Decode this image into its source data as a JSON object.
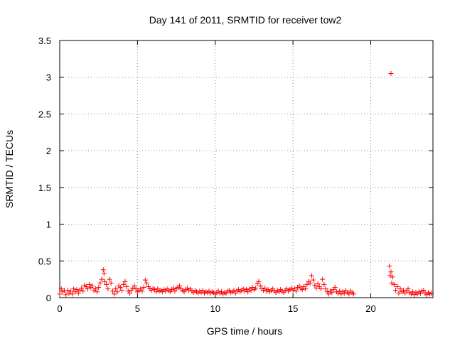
{
  "chart_data": {
    "type": "scatter",
    "title": "Day 141 of 2011, SRMTID for receiver tow2",
    "xlabel": "GPS time / hours",
    "ylabel": "SRMTID / TECUs",
    "xlim": [
      0,
      24
    ],
    "ylim": [
      0,
      3.5
    ],
    "grid": true,
    "marker": "+",
    "colors": {
      "series": "#ff0000",
      "grid": "#888888",
      "axis": "#000000"
    },
    "x_ticks": [
      0,
      5,
      10,
      15,
      20
    ],
    "x_tick_labels": [
      "0",
      "5",
      "10",
      "15",
      "20"
    ],
    "y_ticks": [
      0,
      0.5,
      1,
      1.5,
      2,
      2.5,
      3,
      3.5
    ],
    "y_tick_labels": [
      "0",
      "0.5",
      "1",
      "1.5",
      "2",
      "2.5",
      "3",
      "3.5"
    ],
    "series": [
      {
        "points": [
          [
            0.0,
            0.05
          ],
          [
            0.1,
            0.12
          ],
          [
            0.2,
            0.08
          ],
          [
            0.3,
            0.1
          ],
          [
            0.4,
            0.04
          ],
          [
            0.5,
            0.1
          ],
          [
            0.6,
            0.06
          ],
          [
            0.7,
            0.09
          ],
          [
            0.8,
            0.05
          ],
          [
            0.9,
            0.12
          ],
          [
            1.0,
            0.08
          ],
          [
            1.1,
            0.11
          ],
          [
            1.2,
            0.06
          ],
          [
            1.3,
            0.1
          ],
          [
            1.4,
            0.13
          ],
          [
            1.5,
            0.09
          ],
          [
            1.6,
            0.17
          ],
          [
            1.7,
            0.15
          ],
          [
            1.8,
            0.12
          ],
          [
            1.9,
            0.18
          ],
          [
            2.0,
            0.14
          ],
          [
            2.1,
            0.16
          ],
          [
            2.2,
            0.1
          ],
          [
            2.3,
            0.12
          ],
          [
            2.4,
            0.08
          ],
          [
            2.5,
            0.14
          ],
          [
            2.6,
            0.2
          ],
          [
            2.7,
            0.25
          ],
          [
            2.8,
            0.38
          ],
          [
            2.85,
            0.33
          ],
          [
            2.9,
            0.22
          ],
          [
            3.0,
            0.18
          ],
          [
            3.1,
            0.12
          ],
          [
            3.2,
            0.25
          ],
          [
            3.3,
            0.2
          ],
          [
            3.4,
            0.09
          ],
          [
            3.5,
            0.05
          ],
          [
            3.6,
            0.12
          ],
          [
            3.7,
            0.08
          ],
          [
            3.8,
            0.16
          ],
          [
            3.9,
            0.14
          ],
          [
            4.0,
            0.1
          ],
          [
            4.1,
            0.18
          ],
          [
            4.2,
            0.22
          ],
          [
            4.3,
            0.15
          ],
          [
            4.4,
            0.09
          ],
          [
            4.5,
            0.06
          ],
          [
            4.6,
            0.1
          ],
          [
            4.7,
            0.13
          ],
          [
            4.8,
            0.16
          ],
          [
            4.9,
            0.12
          ],
          [
            5.0,
            0.08
          ],
          [
            5.1,
            0.1
          ],
          [
            5.2,
            0.12
          ],
          [
            5.3,
            0.09
          ],
          [
            5.4,
            0.14
          ],
          [
            5.5,
            0.24
          ],
          [
            5.6,
            0.2
          ],
          [
            5.7,
            0.15
          ],
          [
            5.8,
            0.12
          ],
          [
            5.9,
            0.1
          ],
          [
            6.0,
            0.13
          ],
          [
            6.1,
            0.11
          ],
          [
            6.2,
            0.08
          ],
          [
            6.3,
            0.12
          ],
          [
            6.4,
            0.09
          ],
          [
            6.5,
            0.1
          ],
          [
            6.6,
            0.08
          ],
          [
            6.7,
            0.11
          ],
          [
            6.8,
            0.09
          ],
          [
            6.9,
            0.12
          ],
          [
            7.0,
            0.1
          ],
          [
            7.1,
            0.08
          ],
          [
            7.2,
            0.11
          ],
          [
            7.3,
            0.13
          ],
          [
            7.4,
            0.09
          ],
          [
            7.5,
            0.12
          ],
          [
            7.6,
            0.14
          ],
          [
            7.7,
            0.16
          ],
          [
            7.8,
            0.12
          ],
          [
            7.9,
            0.1
          ],
          [
            8.0,
            0.08
          ],
          [
            8.1,
            0.11
          ],
          [
            8.2,
            0.13
          ],
          [
            8.3,
            0.1
          ],
          [
            8.4,
            0.12
          ],
          [
            8.5,
            0.09
          ],
          [
            8.6,
            0.07
          ],
          [
            8.7,
            0.1
          ],
          [
            8.8,
            0.08
          ],
          [
            8.9,
            0.06
          ],
          [
            9.0,
            0.09
          ],
          [
            9.1,
            0.07
          ],
          [
            9.2,
            0.1
          ],
          [
            9.3,
            0.06
          ],
          [
            9.4,
            0.08
          ],
          [
            9.5,
            0.07
          ],
          [
            9.6,
            0.09
          ],
          [
            9.7,
            0.06
          ],
          [
            9.8,
            0.08
          ],
          [
            9.9,
            0.07
          ],
          [
            10.0,
            0.05
          ],
          [
            10.1,
            0.07
          ],
          [
            10.2,
            0.09
          ],
          [
            10.3,
            0.06
          ],
          [
            10.4,
            0.08
          ],
          [
            10.5,
            0.05
          ],
          [
            10.6,
            0.07
          ],
          [
            10.7,
            0.06
          ],
          [
            10.8,
            0.09
          ],
          [
            10.9,
            0.1
          ],
          [
            11.0,
            0.07
          ],
          [
            11.1,
            0.08
          ],
          [
            11.2,
            0.1
          ],
          [
            11.3,
            0.06
          ],
          [
            11.4,
            0.09
          ],
          [
            11.5,
            0.11
          ],
          [
            11.6,
            0.08
          ],
          [
            11.7,
            0.1
          ],
          [
            11.8,
            0.12
          ],
          [
            11.9,
            0.09
          ],
          [
            12.0,
            0.11
          ],
          [
            12.1,
            0.08
          ],
          [
            12.2,
            0.12
          ],
          [
            12.3,
            0.1
          ],
          [
            12.4,
            0.14
          ],
          [
            12.5,
            0.11
          ],
          [
            12.6,
            0.13
          ],
          [
            12.7,
            0.19
          ],
          [
            12.8,
            0.22
          ],
          [
            12.9,
            0.16
          ],
          [
            13.0,
            0.12
          ],
          [
            13.1,
            0.1
          ],
          [
            13.2,
            0.13
          ],
          [
            13.3,
            0.09
          ],
          [
            13.4,
            0.11
          ],
          [
            13.5,
            0.08
          ],
          [
            13.6,
            0.1
          ],
          [
            13.7,
            0.12
          ],
          [
            13.8,
            0.09
          ],
          [
            13.9,
            0.07
          ],
          [
            14.0,
            0.1
          ],
          [
            14.1,
            0.08
          ],
          [
            14.2,
            0.11
          ],
          [
            14.3,
            0.09
          ],
          [
            14.4,
            0.07
          ],
          [
            14.5,
            0.1
          ],
          [
            14.6,
            0.12
          ],
          [
            14.7,
            0.09
          ],
          [
            14.8,
            0.11
          ],
          [
            14.9,
            0.13
          ],
          [
            15.0,
            0.1
          ],
          [
            15.1,
            0.12
          ],
          [
            15.2,
            0.09
          ],
          [
            15.3,
            0.14
          ],
          [
            15.4,
            0.16
          ],
          [
            15.5,
            0.13
          ],
          [
            15.6,
            0.11
          ],
          [
            15.7,
            0.15
          ],
          [
            15.8,
            0.12
          ],
          [
            15.9,
            0.18
          ],
          [
            16.0,
            0.22
          ],
          [
            16.1,
            0.2
          ],
          [
            16.2,
            0.3
          ],
          [
            16.3,
            0.24
          ],
          [
            16.4,
            0.17
          ],
          [
            16.5,
            0.13
          ],
          [
            16.6,
            0.19
          ],
          [
            16.7,
            0.15
          ],
          [
            16.8,
            0.12
          ],
          [
            16.9,
            0.25
          ],
          [
            17.0,
            0.18
          ],
          [
            17.1,
            0.12
          ],
          [
            17.2,
            0.08
          ],
          [
            17.3,
            0.05
          ],
          [
            17.4,
            0.09
          ],
          [
            17.5,
            0.07
          ],
          [
            17.6,
            0.11
          ],
          [
            17.7,
            0.14
          ],
          [
            17.8,
            0.08
          ],
          [
            17.9,
            0.06
          ],
          [
            18.0,
            0.09
          ],
          [
            18.1,
            0.05
          ],
          [
            18.2,
            0.08
          ],
          [
            18.3,
            0.06
          ],
          [
            18.4,
            0.1
          ],
          [
            18.5,
            0.07
          ],
          [
            18.6,
            0.05
          ],
          [
            18.7,
            0.09
          ],
          [
            18.8,
            0.07
          ],
          [
            18.9,
            0.05
          ],
          [
            21.2,
            0.43
          ],
          [
            21.25,
            0.3
          ],
          [
            21.3,
            0.35
          ],
          [
            21.35,
            0.2
          ],
          [
            21.4,
            0.28
          ],
          [
            21.5,
            0.18
          ],
          [
            21.6,
            0.1
          ],
          [
            21.7,
            0.15
          ],
          [
            21.8,
            0.06
          ],
          [
            21.9,
            0.12
          ],
          [
            22.0,
            0.08
          ],
          [
            22.1,
            0.1
          ],
          [
            22.2,
            0.06
          ],
          [
            22.3,
            0.09
          ],
          [
            22.4,
            0.12
          ],
          [
            22.5,
            0.07
          ],
          [
            22.6,
            0.05
          ],
          [
            22.7,
            0.08
          ],
          [
            22.8,
            0.04
          ],
          [
            22.9,
            0.07
          ],
          [
            23.0,
            0.05
          ],
          [
            23.1,
            0.08
          ],
          [
            23.2,
            0.06
          ],
          [
            23.3,
            0.09
          ],
          [
            23.4,
            0.1
          ],
          [
            23.5,
            0.06
          ],
          [
            23.6,
            0.04
          ],
          [
            23.7,
            0.07
          ],
          [
            23.8,
            0.05
          ],
          [
            23.9,
            0.06
          ],
          [
            21.3,
            3.05
          ]
        ]
      }
    ]
  }
}
